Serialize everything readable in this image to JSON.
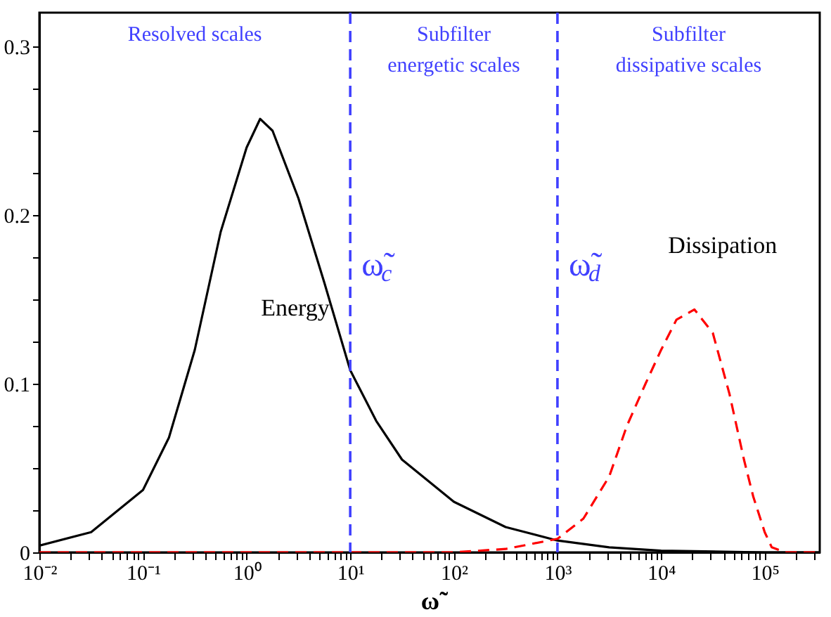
{
  "chart_data": {
    "type": "line",
    "xlabel": "ω̃",
    "log": "x",
    "grid": false,
    "marker": "none",
    "xlim": [
      0.01,
      340000
    ],
    "ylim": [
      0,
      0.32
    ],
    "xticks": [
      {
        "value": 0.01,
        "label": "10⁻²"
      },
      {
        "value": 0.02,
        "label": null
      },
      {
        "value": 0.03,
        "label": null
      },
      {
        "value": 0.04,
        "label": null
      },
      {
        "value": 0.05,
        "label": null
      },
      {
        "value": 0.06,
        "label": null
      },
      {
        "value": 0.07,
        "label": null
      },
      {
        "value": 0.08,
        "label": null
      },
      {
        "value": 0.09,
        "label": null
      },
      {
        "value": 0.1,
        "label": "10⁻¹"
      },
      {
        "value": 0.2,
        "label": null
      },
      {
        "value": 0.3,
        "label": null
      },
      {
        "value": 0.4,
        "label": null
      },
      {
        "value": 0.5,
        "label": null
      },
      {
        "value": 0.6,
        "label": null
      },
      {
        "value": 0.7,
        "label": null
      },
      {
        "value": 0.8,
        "label": null
      },
      {
        "value": 0.9,
        "label": null
      },
      {
        "value": 1,
        "label": "10⁰"
      },
      {
        "value": 2,
        "label": null
      },
      {
        "value": 3,
        "label": null
      },
      {
        "value": 4,
        "label": null
      },
      {
        "value": 5,
        "label": null
      },
      {
        "value": 6,
        "label": null
      },
      {
        "value": 7,
        "label": null
      },
      {
        "value": 8,
        "label": null
      },
      {
        "value": 9,
        "label": null
      },
      {
        "value": 10,
        "label": "10¹"
      },
      {
        "value": 20,
        "label": null
      },
      {
        "value": 30,
        "label": null
      },
      {
        "value": 40,
        "label": null
      },
      {
        "value": 50,
        "label": null
      },
      {
        "value": 60,
        "label": null
      },
      {
        "value": 70,
        "label": null
      },
      {
        "value": 80,
        "label": null
      },
      {
        "value": 90,
        "label": null
      },
      {
        "value": 100,
        "label": "10²"
      },
      {
        "value": 200,
        "label": null
      },
      {
        "value": 300,
        "label": null
      },
      {
        "value": 400,
        "label": null
      },
      {
        "value": 500,
        "label": null
      },
      {
        "value": 600,
        "label": null
      },
      {
        "value": 700,
        "label": null
      },
      {
        "value": 800,
        "label": null
      },
      {
        "value": 900,
        "label": null
      },
      {
        "value": 1000,
        "label": "10³"
      },
      {
        "value": 2000,
        "label": null
      },
      {
        "value": 3000,
        "label": null
      },
      {
        "value": 4000,
        "label": null
      },
      {
        "value": 5000,
        "label": null
      },
      {
        "value": 6000,
        "label": null
      },
      {
        "value": 7000,
        "label": null
      },
      {
        "value": 8000,
        "label": null
      },
      {
        "value": 9000,
        "label": null
      },
      {
        "value": 10000,
        "label": "10⁴"
      },
      {
        "value": 20000,
        "label": null
      },
      {
        "value": 30000,
        "label": null
      },
      {
        "value": 40000,
        "label": null
      },
      {
        "value": 50000,
        "label": null
      },
      {
        "value": 60000,
        "label": null
      },
      {
        "value": 70000,
        "label": null
      },
      {
        "value": 80000,
        "label": null
      },
      {
        "value": 90000,
        "label": null
      },
      {
        "value": 100000,
        "label": "10⁵"
      },
      {
        "value": 200000,
        "label": null
      },
      {
        "value": 300000,
        "label": null
      }
    ],
    "yticks": [
      0,
      {
        "value": 0.025,
        "label": null
      },
      {
        "value": 0.05,
        "label": null
      },
      {
        "value": 0.075,
        "label": null
      },
      0.1,
      {
        "value": 0.125,
        "label": null
      },
      {
        "value": 0.15,
        "label": null
      },
      {
        "value": 0.175,
        "label": null
      },
      0.2,
      {
        "value": 0.225,
        "label": null
      },
      {
        "value": 0.25,
        "label": null
      },
      {
        "value": 0.275,
        "label": null
      },
      0.3
    ],
    "series": [
      {
        "name": "Energy",
        "color": "#000000",
        "line_style": "solid",
        "x": [
          0.01,
          0.0316,
          0.1,
          0.178,
          0.316,
          0.562,
          1,
          1.35,
          1.78,
          3.16,
          5.62,
          10,
          17.8,
          31.6,
          100,
          316,
          1000,
          3160,
          10000,
          100000,
          340000
        ],
        "values": [
          0.004,
          0.012,
          0.037,
          0.068,
          0.12,
          0.19,
          0.24,
          0.257,
          0.25,
          0.21,
          0.16,
          0.108,
          0.078,
          0.055,
          0.03,
          0.015,
          0.007,
          0.003,
          0.001,
          0,
          0
        ]
      },
      {
        "name": "Dissipation",
        "color": "#ff0000",
        "line_style": "dashed",
        "x": [
          0.01,
          100,
          316,
          1000,
          1780,
          3160,
          4680,
          7080,
          10000,
          14100,
          21000,
          31600,
          45700,
          63100,
          77600,
          100000,
          117000,
          158000,
          340000
        ],
        "values": [
          0,
          0,
          0.002,
          0.008,
          0.02,
          0.045,
          0.075,
          0.1,
          0.12,
          0.138,
          0.144,
          0.13,
          0.094,
          0.055,
          0.033,
          0.012,
          0.003,
          0,
          0
        ]
      }
    ],
    "ref_lines": [
      {
        "axis": "x",
        "value": 10,
        "label": "ω̃$_{c}$",
        "color": "#4040ff",
        "line_style": "dashed"
      },
      {
        "axis": "x",
        "value": 1000,
        "label": "ω̃$_{d}$",
        "color": "#4040ff",
        "line_style": "dashed"
      }
    ],
    "annotations": [
      "Resolved scales",
      "Subfilter\nenergetic scales",
      "Subfilter\ndissipative scales"
    ]
  }
}
